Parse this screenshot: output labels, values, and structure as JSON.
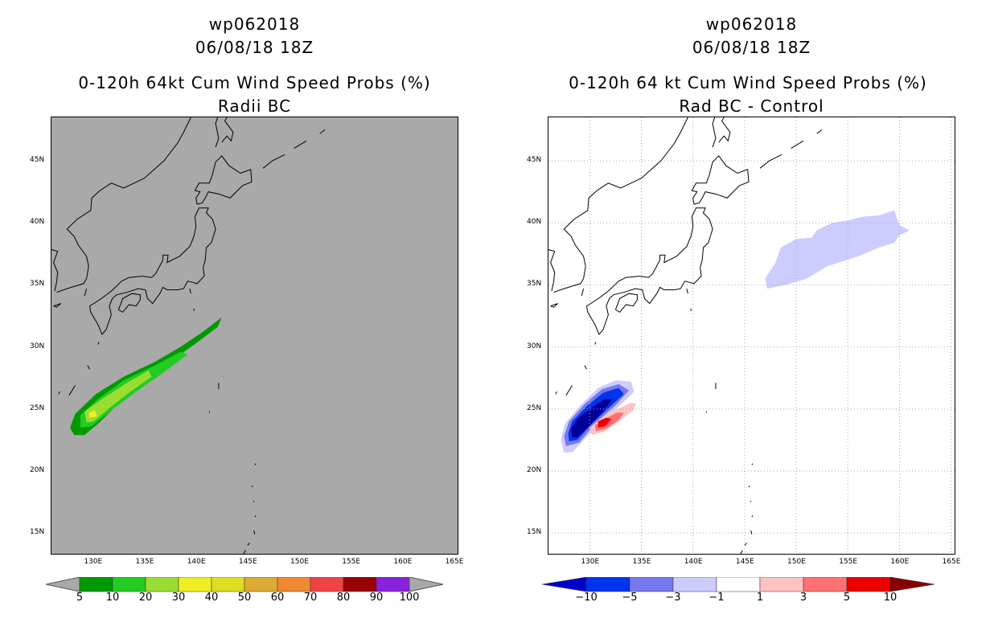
{
  "chart_data": [
    {
      "type": "contour-map",
      "title": [
        "wp062018",
        "06/08/18 18Z",
        "0-120h 64kt Cum Wind Speed Probs (%)",
        "Radii BC"
      ],
      "x_ticks": [
        "130E",
        "135E",
        "140E",
        "145E",
        "150E",
        "155E",
        "160E",
        "165E"
      ],
      "y_ticks": [
        "45N",
        "40N",
        "35N",
        "30N",
        "25N",
        "20N",
        "15N"
      ],
      "xlim": [
        126,
        165.5
      ],
      "ylim": [
        13.2,
        48.5
      ],
      "colorbar": {
        "labels": [
          "5",
          "10",
          "20",
          "30",
          "40",
          "50",
          "60",
          "70",
          "80",
          "90",
          "100"
        ],
        "colors": [
          "#009900",
          "#22cc22",
          "#99dd33",
          "#eeee22",
          "#dddd22",
          "#ddaa33",
          "#ee8833",
          "#ee4444",
          "#990000",
          "#8822dd"
        ],
        "under_color": "#a9a9a9",
        "over_color": "#a9a9a9"
      },
      "contours": [
        {
          "level": 5,
          "color": "#009900",
          "lonlat": [
            [
              128.2,
              22.9
            ],
            [
              127.8,
              23.5
            ],
            [
              128.3,
              24.6
            ],
            [
              130.3,
              26.2
            ],
            [
              133,
              27.6
            ],
            [
              136,
              28.8
            ],
            [
              138.5,
              30
            ],
            [
              140.8,
              31.3
            ],
            [
              142.5,
              32.4
            ],
            [
              142.1,
              31.6
            ],
            [
              140,
              30.3
            ],
            [
              137.5,
              28.8
            ],
            [
              135,
              27.3
            ],
            [
              132.7,
              25.6
            ],
            [
              130.5,
              23.8
            ],
            [
              129.2,
              22.9
            ]
          ]
        },
        {
          "level": 10,
          "color": "#22cc22",
          "lonlat": [
            [
              128.8,
              23.5
            ],
            [
              128.8,
              24.5
            ],
            [
              130.5,
              25.8
            ],
            [
              133,
              27.3
            ],
            [
              136,
              28.5
            ],
            [
              138.5,
              29.6
            ],
            [
              139.2,
              29.4
            ],
            [
              136.8,
              27.9
            ],
            [
              134.2,
              26.4
            ],
            [
              131.8,
              24.9
            ],
            [
              129.9,
              23.6
            ]
          ]
        },
        {
          "level": 20,
          "color": "#99dd33",
          "lonlat": [
            [
              129.4,
              23.9
            ],
            [
              129.2,
              24.8
            ],
            [
              130.9,
              25.8
            ],
            [
              133.3,
              27.1
            ],
            [
              135.4,
              28.1
            ],
            [
              135.7,
              27.6
            ],
            [
              133.5,
              26.3
            ],
            [
              131.5,
              25
            ],
            [
              130.1,
              24
            ]
          ]
        },
        {
          "level": 30,
          "color": "#eeee22",
          "lonlat": [
            [
              129.7,
              24.3
            ],
            [
              129.6,
              24.7
            ],
            [
              130.2,
              24.9
            ],
            [
              130.4,
              24.4
            ]
          ]
        }
      ]
    },
    {
      "type": "contour-map",
      "title": [
        "wp062018",
        "06/08/18 18Z",
        "0-120h 64 kt Cum Wind Speed Probs (%)",
        "Rad BC - Control"
      ],
      "x_ticks": [
        "130E",
        "135E",
        "140E",
        "145E",
        "150E",
        "155E",
        "160E",
        "165E"
      ],
      "y_ticks": [
        "45N",
        "40N",
        "35N",
        "30N",
        "25N",
        "20N",
        "15N"
      ],
      "xlim": [
        126,
        165.5
      ],
      "ylim": [
        13.2,
        48.5
      ],
      "colorbar": {
        "labels": [
          "-10",
          "-5",
          "-3",
          "-1",
          "1",
          "3",
          "5",
          "10"
        ],
        "colors": [
          "#0000cc",
          "#0033ee",
          "#7777ee",
          "#ccccff",
          "#ffffff",
          "#ffc3c3",
          "#ff7070",
          "#ee0000",
          "#880000"
        ]
      },
      "contours": [
        {
          "level": -1,
          "color": "#ccccff",
          "lonlat": [
            [
              147.2,
              34.7
            ],
            [
              147,
              35.5
            ],
            [
              148,
              36.8
            ],
            [
              148.5,
              38
            ],
            [
              150,
              38.7
            ],
            [
              151.5,
              38.8
            ],
            [
              152,
              39.4
            ],
            [
              153.5,
              40
            ],
            [
              155,
              40.2
            ],
            [
              156.5,
              40.5
            ],
            [
              158,
              40.6
            ],
            [
              159.5,
              41
            ],
            [
              160,
              39.8
            ],
            [
              161,
              39.4
            ],
            [
              160,
              39
            ],
            [
              159.5,
              38.4
            ],
            [
              158,
              38
            ],
            [
              156,
              37.3
            ],
            [
              153,
              36.5
            ],
            [
              151,
              35.5
            ],
            [
              149,
              35
            ]
          ]
        },
        {
          "level": -1,
          "color": "#ccccff",
          "lonlat": [
            [
              127.5,
              21.5
            ],
            [
              127.2,
              22.5
            ],
            [
              127.6,
              23.8
            ],
            [
              129,
              25.2
            ],
            [
              130.8,
              26.7
            ],
            [
              132.5,
              27.3
            ],
            [
              134,
              27.2
            ],
            [
              134.3,
              26.4
            ],
            [
              133.2,
              25.5
            ],
            [
              131.5,
              24.2
            ],
            [
              129.5,
              22.6
            ],
            [
              128.3,
              21.5
            ]
          ]
        },
        {
          "level": -3,
          "color": "#7777ee",
          "lonlat": [
            [
              127.7,
              22
            ],
            [
              127.5,
              22.8
            ],
            [
              128,
              24
            ],
            [
              129.5,
              25.4
            ],
            [
              131.2,
              26.6
            ],
            [
              132.8,
              27
            ],
            [
              133.8,
              26.5
            ],
            [
              132.5,
              25.3
            ],
            [
              130.5,
              23.8
            ],
            [
              129,
              22.3
            ]
          ]
        },
        {
          "level": -5,
          "color": "#0033ee",
          "lonlat": [
            [
              128,
              22.4
            ],
            [
              127.9,
              23
            ],
            [
              128.3,
              24
            ],
            [
              129.8,
              25.3
            ],
            [
              131.3,
              26.3
            ],
            [
              132.8,
              26.7
            ],
            [
              133.3,
              26.2
            ],
            [
              132,
              25.2
            ],
            [
              130.2,
              23.8
            ],
            [
              128.8,
              22.5
            ]
          ]
        },
        {
          "level": -10,
          "color": "#000099",
          "lonlat": [
            [
              128.3,
              22.7
            ],
            [
              128.2,
              23.4
            ],
            [
              128.8,
              24.2
            ],
            [
              130,
              25
            ],
            [
              131.4,
              25.8
            ],
            [
              132.2,
              25.8
            ],
            [
              131.2,
              24.7
            ],
            [
              129.8,
              23.5
            ],
            [
              128.8,
              22.7
            ]
          ]
        },
        {
          "level": 1,
          "color": "#ffc3c3",
          "lonlat": [
            [
              130.2,
              22.9
            ],
            [
              130,
              23.5
            ],
            [
              131,
              24.2
            ],
            [
              132.2,
              24.8
            ],
            [
              134,
              25.5
            ],
            [
              134.5,
              25.4
            ],
            [
              134.2,
              24.9
            ],
            [
              133,
              24.1
            ],
            [
              131.5,
              23.2
            ]
          ]
        },
        {
          "level": 3,
          "color": "#ff7070",
          "lonlat": [
            [
              130.6,
              23.2
            ],
            [
              130.5,
              23.7
            ],
            [
              131.5,
              24.2
            ],
            [
              132.6,
              24.7
            ],
            [
              133.3,
              24.7
            ],
            [
              132.8,
              24.1
            ],
            [
              131.6,
              23.4
            ]
          ]
        },
        {
          "level": 5,
          "color": "#ee0000",
          "lonlat": [
            [
              130.8,
              23.5
            ],
            [
              130.8,
              24
            ],
            [
              131.6,
              24.3
            ],
            [
              132.1,
              24.2
            ],
            [
              131.5,
              23.6
            ]
          ]
        }
      ]
    }
  ]
}
